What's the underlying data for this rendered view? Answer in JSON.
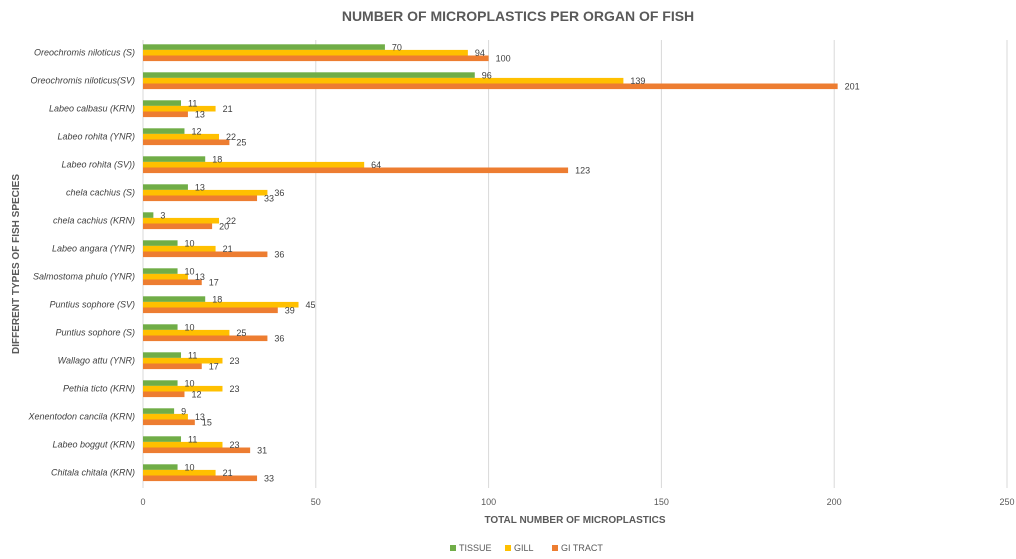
{
  "chart_data": {
    "type": "bar",
    "orientation": "horizontal",
    "title": "NUMBER OF MICROPLASTICS PER ORGAN OF FISH",
    "xlabel": "TOTAL NUMBER OF MICROPLASTICS",
    "ylabel": "DIFFERENT TYPES OF FISH SPECIES",
    "xlim": [
      0,
      250
    ],
    "xticks": [
      0,
      50,
      100,
      150,
      200,
      250
    ],
    "grid": true,
    "legend_position": "bottom",
    "categories": [
      "Oreochromis niloticus (S)",
      "Oreochromis niloticus(SV)",
      "Labeo calbasu (KRN)",
      "Labeo rohita (YNR)",
      "Labeo rohita (SV))",
      "chela cachius (S)",
      "chela cachius (KRN)",
      "Labeo angara (YNR)",
      "Salmostoma phulo (YNR)",
      "Puntius sophore (SV)",
      "Puntius sophore (S)",
      "Wallago attu (YNR)",
      "Pethia ticto (KRN)",
      "Xenentodon cancila (KRN)",
      "Labeo boggut (KRN)",
      "Chitala chitala (KRN)"
    ],
    "series": [
      {
        "name": "TISSUE",
        "color": "#70ad47",
        "values": [
          70,
          96,
          11,
          12,
          18,
          13,
          3,
          10,
          10,
          18,
          10,
          11,
          10,
          9,
          11,
          10
        ]
      },
      {
        "name": "GILL",
        "color": "#ffc000",
        "values": [
          94,
          139,
          21,
          22,
          64,
          36,
          22,
          21,
          13,
          45,
          25,
          23,
          23,
          13,
          23,
          21
        ]
      },
      {
        "name": "GI TRACT",
        "color": "#ed7d31",
        "values": [
          100,
          201,
          13,
          25,
          123,
          33,
          20,
          36,
          17,
          39,
          36,
          17,
          12,
          15,
          31,
          33
        ]
      }
    ]
  }
}
